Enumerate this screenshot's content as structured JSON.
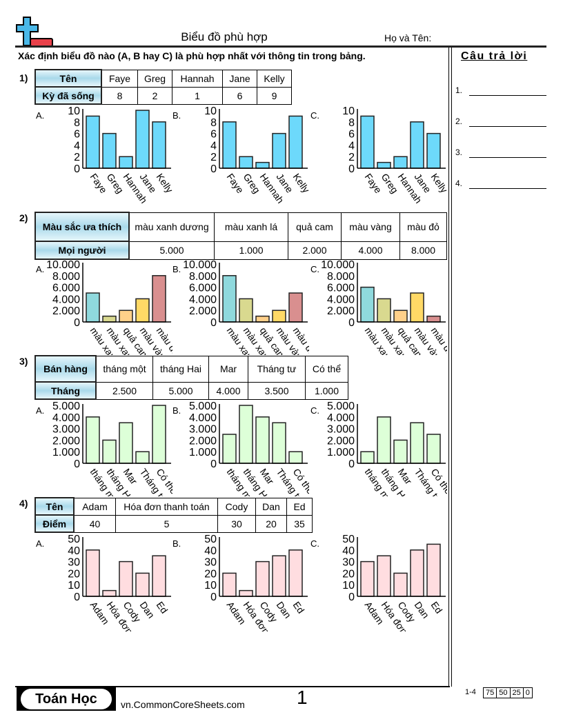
{
  "header": {
    "title": "Biểu đồ phù hợp",
    "name_label": "Họ và Tên:",
    "instructions": "Xác định biểu đồ nào (A, B hay C) là phù hợp nhất với thông tin trong bảng."
  },
  "answers": {
    "title": "Câu trả lời",
    "items": [
      "1.",
      "2.",
      "3.",
      "4."
    ]
  },
  "problems": [
    {
      "num": "1)",
      "header": [
        "Tên",
        "Faye",
        "Greg",
        "Hannah",
        "Jane",
        "Kelly"
      ],
      "row": [
        "Kỳ đã sống",
        "8",
        "2",
        "1",
        "6",
        "9"
      ]
    },
    {
      "num": "2)",
      "header": [
        "Màu sắc ưa thích",
        "màu xanh dương",
        "màu xanh lá",
        "quả cam",
        "màu vàng",
        "màu đỏ"
      ],
      "row": [
        "Mọi người",
        "5.000",
        "1.000",
        "2.000",
        "4.000",
        "8.000"
      ]
    },
    {
      "num": "3)",
      "header": [
        "Bán hàng",
        "tháng một",
        "tháng Hai",
        "Mar",
        "Tháng tư",
        "Có thể"
      ],
      "row": [
        "Tháng",
        "2.500",
        "5.000",
        "4.000",
        "3.500",
        "1.000"
      ]
    },
    {
      "num": "4)",
      "header": [
        "Tên",
        "Adam",
        "Hóa đơn thanh toán",
        "Cody",
        "Dan",
        "Ed"
      ],
      "row": [
        "Điểm",
        "40",
        "5",
        "30",
        "20",
        "35"
      ]
    }
  ],
  "chart_data": [
    {
      "type": "bar",
      "option": "A.",
      "categories": [
        "Faye",
        "Greg",
        "Hannah",
        "Jane",
        "Kelly"
      ],
      "values": [
        9,
        6,
        2,
        10,
        8
      ],
      "ylim": [
        0,
        10
      ],
      "yticks": [
        "0",
        "2",
        "4",
        "6",
        "8",
        "10"
      ],
      "colors": [
        "#6dd9fb"
      ]
    },
    {
      "type": "bar",
      "option": "B.",
      "categories": [
        "Faye",
        "Greg",
        "Hannah",
        "Jane",
        "Kelly"
      ],
      "values": [
        8,
        2,
        1,
        6,
        9
      ],
      "ylim": [
        0,
        10
      ],
      "yticks": [
        "0",
        "2",
        "4",
        "6",
        "8",
        "10"
      ],
      "colors": [
        "#6dd9fb"
      ]
    },
    {
      "type": "bar",
      "option": "C.",
      "categories": [
        "Faye",
        "Greg",
        "Hannah",
        "Jane",
        "Kelly"
      ],
      "values": [
        9,
        1,
        2,
        8,
        6
      ],
      "ylim": [
        0,
        10
      ],
      "yticks": [
        "0",
        "2",
        "4",
        "6",
        "8",
        "10"
      ],
      "colors": [
        "#6dd9fb"
      ]
    },
    {
      "type": "bar",
      "option": "A.",
      "categories": [
        "màu xanh dương",
        "màu xanh lá",
        "quả cam",
        "màu vàng",
        "màu đỏ"
      ],
      "values": [
        5000,
        1000,
        2000,
        4000,
        8000
      ],
      "ylim": [
        0,
        10000
      ],
      "yticks": [
        "0",
        "2.000",
        "4.000",
        "6.000",
        "8.000",
        "10.000"
      ],
      "colors": [
        "#8fd9dd",
        "#d9d98f",
        "#ffd08a",
        "#ffd966",
        "#d98f8f"
      ]
    },
    {
      "type": "bar",
      "option": "B.",
      "categories": [
        "màu xanh dương",
        "màu xanh lá",
        "quả cam",
        "màu vàng",
        "màu đỏ"
      ],
      "values": [
        8000,
        4000,
        1000,
        2000,
        5000
      ],
      "ylim": [
        0,
        10000
      ],
      "yticks": [
        "0",
        "2.000",
        "4.000",
        "6.000",
        "8.000",
        "10.000"
      ],
      "colors": [
        "#8fd9dd",
        "#d9d98f",
        "#ffd08a",
        "#ffd966",
        "#d98f8f"
      ]
    },
    {
      "type": "bar",
      "option": "C.",
      "categories": [
        "màu xanh dương",
        "màu xanh lá",
        "quả cam",
        "màu vàng",
        "màu đỏ"
      ],
      "values": [
        6000,
        4000,
        2000,
        5000,
        1000
      ],
      "ylim": [
        0,
        10000
      ],
      "yticks": [
        "0",
        "2.000",
        "4.000",
        "6.000",
        "8.000",
        "10.000"
      ],
      "colors": [
        "#8fd9dd",
        "#d9d98f",
        "#ffd08a",
        "#ffd966",
        "#d98f8f"
      ]
    },
    {
      "type": "bar",
      "option": "A.",
      "categories": [
        "tháng một",
        "tháng Hai",
        "Mar",
        "Tháng tư",
        "Có thể"
      ],
      "values": [
        4000,
        2000,
        3500,
        1000,
        5000
      ],
      "ylim": [
        0,
        5000
      ],
      "yticks": [
        "0",
        "1.000",
        "2.000",
        "3.000",
        "4.000",
        "5.000"
      ],
      "colors": [
        "#ddffd8"
      ]
    },
    {
      "type": "bar",
      "option": "B.",
      "categories": [
        "tháng một",
        "tháng Hai",
        "Mar",
        "Tháng tư",
        "Có thể"
      ],
      "values": [
        2500,
        5000,
        4000,
        3500,
        1000
      ],
      "ylim": [
        0,
        5000
      ],
      "yticks": [
        "0",
        "1.000",
        "2.000",
        "3.000",
        "4.000",
        "5.000"
      ],
      "colors": [
        "#ddffd8"
      ]
    },
    {
      "type": "bar",
      "option": "C.",
      "categories": [
        "tháng một",
        "tháng Hai",
        "Mar",
        "Tháng tư",
        "Có thể"
      ],
      "values": [
        1000,
        4000,
        2000,
        3500,
        2500
      ],
      "ylim": [
        0,
        5000
      ],
      "yticks": [
        "0",
        "1.000",
        "2.000",
        "3.000",
        "4.000",
        "5.000"
      ],
      "colors": [
        "#ddffd8"
      ]
    },
    {
      "type": "bar",
      "option": "A.",
      "categories": [
        "Adam",
        "Hóa đơn",
        "Cody",
        "Dan",
        "Ed"
      ],
      "values": [
        40,
        5,
        30,
        20,
        35
      ],
      "ylim": [
        0,
        50
      ],
      "yticks": [
        "0",
        "10",
        "20",
        "30",
        "40",
        "50"
      ],
      "colors": [
        "#ffdde0"
      ]
    },
    {
      "type": "bar",
      "option": "B.",
      "categories": [
        "Adam",
        "Hóa đơn",
        "Cody",
        "Dan",
        "Ed"
      ],
      "values": [
        20,
        5,
        30,
        35,
        40
      ],
      "ylim": [
        0,
        50
      ],
      "yticks": [
        "0",
        "10",
        "20",
        "30",
        "40",
        "50"
      ],
      "colors": [
        "#ffdde0"
      ]
    },
    {
      "type": "bar",
      "option": "C.",
      "categories": [
        "Adam",
        "Hóa đơn",
        "Cody",
        "Dan",
        "Ed"
      ],
      "values": [
        30,
        35,
        20,
        40,
        45
      ],
      "ylim": [
        0,
        50
      ],
      "yticks": [
        "0",
        "10",
        "20",
        "30",
        "40",
        "50"
      ],
      "colors": [
        "#ffdde0"
      ]
    }
  ],
  "footer": {
    "brand": "Toán Học",
    "url": "vn.CommonCoreSheets.com",
    "page": "1",
    "range": "1-4",
    "scores": [
      "75",
      "50",
      "25",
      "0"
    ]
  }
}
